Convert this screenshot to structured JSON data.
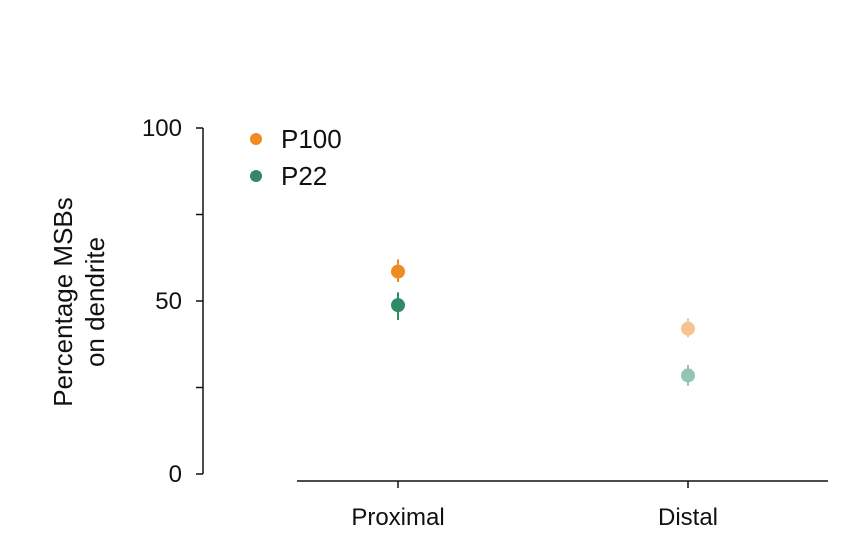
{
  "chart_data": {
    "type": "scatter",
    "ylabel_line1": "Percentage MSBs",
    "ylabel_line2": "on dendrite",
    "ylim": [
      0,
      100
    ],
    "yticks": [
      0,
      25,
      50,
      75,
      100
    ],
    "ytick_labels": [
      "0",
      "",
      "50",
      "",
      "100"
    ],
    "categories": [
      "Proximal",
      "Distal"
    ],
    "legend_position": "top-left",
    "series": [
      {
        "name": "P100",
        "color": "#f08a24",
        "points": [
          {
            "category": "Proximal",
            "y": 58.5,
            "err_low": 55.5,
            "err_high": 62,
            "opacity": 1
          },
          {
            "category": "Distal",
            "y": 42,
            "err_low": 39.5,
            "err_high": 45,
            "opacity": 0.5
          }
        ]
      },
      {
        "name": "P22",
        "color": "#2e8b66",
        "points": [
          {
            "category": "Proximal",
            "y": 48.8,
            "err_low": 44.5,
            "err_high": 52.5,
            "opacity": 1
          },
          {
            "category": "Distal",
            "y": 28.5,
            "err_low": 25.5,
            "err_high": 31.5,
            "opacity": 0.5
          }
        ]
      }
    ]
  }
}
